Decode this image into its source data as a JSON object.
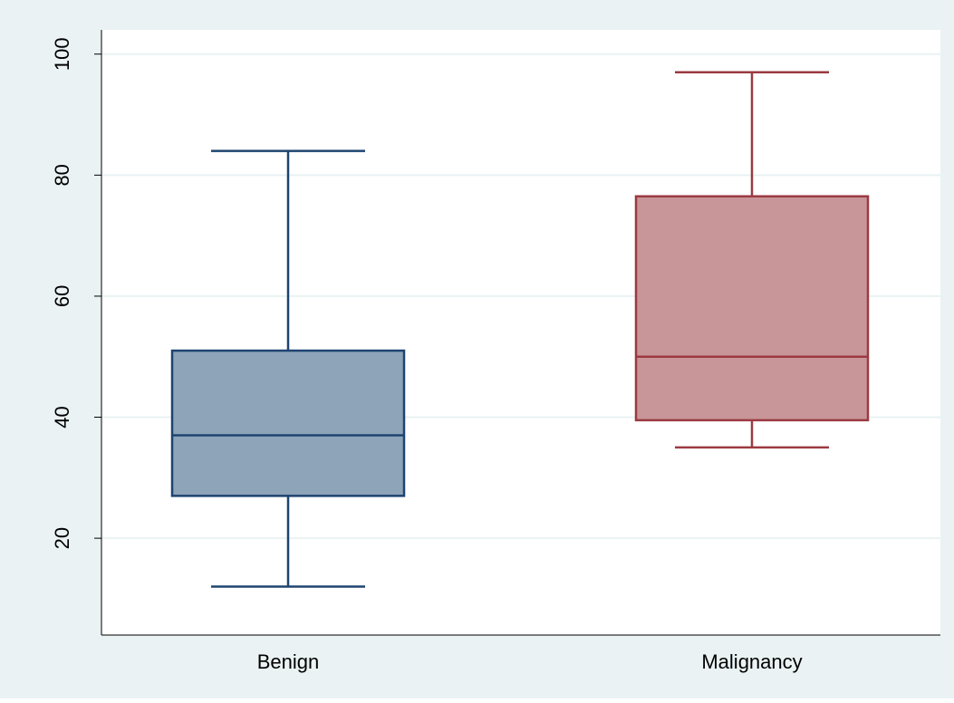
{
  "chart_data": {
    "type": "box",
    "categories": [
      "Benign",
      "Malignancy"
    ],
    "series": [
      {
        "category": "Benign",
        "whisker_low": 12,
        "q1": 27,
        "median": 37,
        "q3": 51,
        "whisker_high": 84,
        "fill_color": "#8da4b9",
        "line_color": "#1e4470"
      },
      {
        "category": "Malignancy",
        "whisker_low": 35,
        "q1": 39.5,
        "median": 50,
        "q3": 76.5,
        "whisker_high": 97,
        "fill_color": "#c89699",
        "line_color": "#9b3a42"
      }
    ],
    "yticks": [
      "20",
      "40",
      "60",
      "80",
      "100"
    ],
    "ylim": [
      4,
      104
    ],
    "grid": true,
    "colors": {
      "background": "#eaf2f3",
      "plot_background": "#ffffff",
      "gridline": "#eaf2f3",
      "axis": "#000000"
    }
  }
}
